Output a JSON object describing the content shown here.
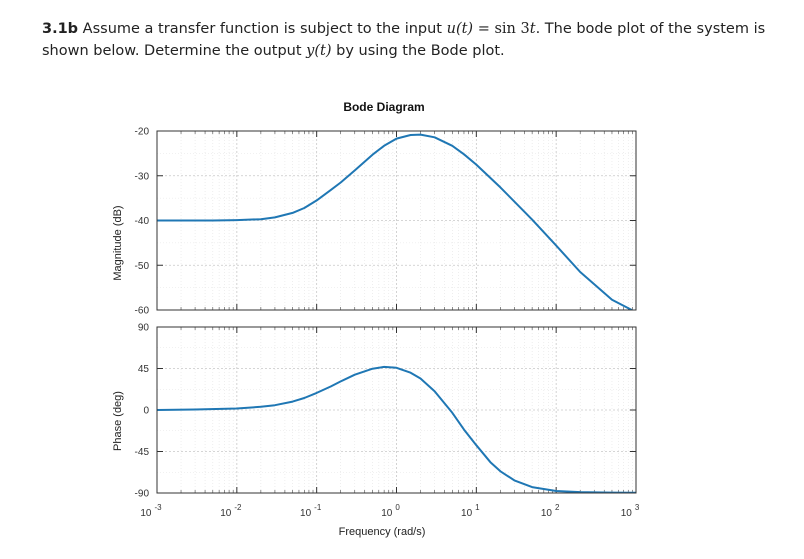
{
  "question": {
    "number": "3.1b",
    "line1_a": " Assume a transfer function is subject to the input ",
    "u_t": "u(t)",
    "eq": " = ",
    "sin_expr": "sin 3",
    "t_var": "t",
    "line1_b": ". The bode plot of the system is",
    "line2_a": "shown below. Determine the output ",
    "y_t": "y(t)",
    "line2_b": " by using the Bode plot."
  },
  "chart_data": [
    {
      "type": "line",
      "title": "Bode Diagram",
      "xlabel": "",
      "ylabel": "Magnitude (dB)",
      "xscale": "log",
      "xlim": [
        0.001,
        1000
      ],
      "ylim": [
        -60,
        -20
      ],
      "yticks": [
        -20,
        -30,
        -40,
        -50,
        -60
      ],
      "grid": true,
      "color": "#1f77b4",
      "series": [
        {
          "x": [
            0.001,
            0.005,
            0.01,
            0.02,
            0.03,
            0.05,
            0.07,
            0.1,
            0.15,
            0.2,
            0.3,
            0.5,
            0.7,
            1,
            1.5,
            2,
            3,
            5,
            7,
            10,
            20,
            50,
            100,
            200,
            500,
            1000
          ],
          "y": [
            -40,
            -40,
            -39.9,
            -39.7,
            -39.3,
            -38.3,
            -37.2,
            -35.5,
            -33.2,
            -31.5,
            -28.8,
            -25.3,
            -23.3,
            -21.7,
            -20.9,
            -20.8,
            -21.4,
            -23.3,
            -25.2,
            -27.5,
            -32.6,
            -39.8,
            -45.6,
            -51.5,
            -57.7,
            -60.5
          ]
        }
      ]
    },
    {
      "type": "line",
      "xlabel": "Frequency (rad/s)",
      "ylabel": "Phase (deg)",
      "xscale": "log",
      "xlim": [
        0.001,
        1000
      ],
      "ylim": [
        -90,
        90
      ],
      "yticks": [
        90,
        45,
        0,
        -45,
        -90
      ],
      "xticks": [
        "10^-3",
        "10^-2",
        "10^-1",
        "10^0",
        "10^1",
        "10^2",
        "10^3"
      ],
      "grid": true,
      "color": "#1f77b4",
      "series": [
        {
          "x": [
            0.001,
            0.003,
            0.01,
            0.02,
            0.03,
            0.05,
            0.07,
            0.1,
            0.15,
            0.2,
            0.3,
            0.5,
            0.7,
            1,
            1.5,
            2,
            3,
            5,
            7,
            10,
            15,
            20,
            30,
            50,
            100,
            200,
            500,
            1000
          ],
          "y": [
            0,
            0.5,
            1.6,
            3.5,
            5.2,
            9.1,
            13,
            18.5,
            25.5,
            31,
            38.3,
            44.8,
            46.7,
            45.8,
            40.4,
            34.2,
            20.3,
            -3,
            -21.3,
            -38.2,
            -56.6,
            -66.5,
            -76.3,
            -83.6,
            -87.8,
            -89,
            -89.6,
            -89.8
          ]
        }
      ]
    }
  ]
}
